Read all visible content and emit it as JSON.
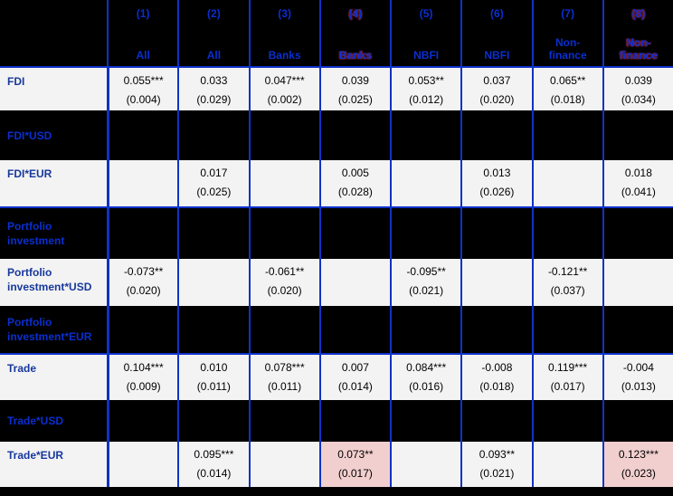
{
  "table": {
    "columns": [
      {
        "num": "(1)",
        "group": "All",
        "highlighted": false
      },
      {
        "num": "(2)",
        "group": "All",
        "highlighted": false
      },
      {
        "num": "(3)",
        "group": "Banks",
        "highlighted": false
      },
      {
        "num": "(4)",
        "group": "Banks",
        "highlighted": true
      },
      {
        "num": "(5)",
        "group": "NBFI",
        "highlighted": false
      },
      {
        "num": "(6)",
        "group": "NBFI",
        "highlighted": false
      },
      {
        "num": "(7)",
        "group": "Non-\nfinance",
        "highlighted": false
      },
      {
        "num": "(8)",
        "group": "Non-\nfinance",
        "highlighted": true
      }
    ],
    "rows": [
      {
        "label": "FDI",
        "variant": "light",
        "cells": [
          {
            "coef": "0.055***",
            "se": "(0.004)"
          },
          {
            "coef": "0.033",
            "se": "(0.029)"
          },
          {
            "coef": "0.047***",
            "se": "(0.002)"
          },
          {
            "coef": "0.039",
            "se": "(0.025)"
          },
          {
            "coef": "0.053**",
            "se": "(0.012)"
          },
          {
            "coef": "0.037",
            "se": "(0.020)"
          },
          {
            "coef": "0.065**",
            "se": "(0.018)"
          },
          {
            "coef": "0.039",
            "se": "(0.034)"
          }
        ]
      },
      {
        "label": "FDI*USD",
        "variant": "dark",
        "cells": [
          null,
          null,
          null,
          null,
          null,
          null,
          null,
          null
        ]
      },
      {
        "label": "FDI*EUR",
        "variant": "light",
        "cells": [
          null,
          {
            "coef": "0.017",
            "se": "(0.025)"
          },
          null,
          {
            "coef": "0.005",
            "se": "(0.028)"
          },
          null,
          {
            "coef": "0.013",
            "se": "(0.026)"
          },
          null,
          {
            "coef": "0.018",
            "se": "(0.041)"
          }
        ]
      },
      {
        "label": "Portfolio investment",
        "variant": "dark",
        "cells": [
          null,
          null,
          null,
          null,
          null,
          null,
          null,
          null
        ]
      },
      {
        "label": "Portfolio investment*USD",
        "variant": "light",
        "cells": [
          {
            "coef": "-0.073**",
            "se": "(0.020)"
          },
          null,
          {
            "coef": "-0.061**",
            "se": "(0.020)"
          },
          null,
          {
            "coef": "-0.095**",
            "se": "(0.021)"
          },
          null,
          {
            "coef": "-0.121**",
            "se": "(0.037)"
          },
          null
        ]
      },
      {
        "label": "Portfolio investment*EUR",
        "variant": "dark",
        "cells": [
          null,
          null,
          null,
          null,
          null,
          null,
          null,
          null
        ]
      },
      {
        "label": "Trade",
        "variant": "light",
        "cells": [
          {
            "coef": "0.104***",
            "se": "(0.009)"
          },
          {
            "coef": "0.010",
            "se": "(0.011)"
          },
          {
            "coef": "0.078***",
            "se": "(0.011)"
          },
          {
            "coef": "0.007",
            "se": "(0.014)"
          },
          {
            "coef": "0.084***",
            "se": "(0.016)"
          },
          {
            "coef": "-0.008",
            "se": "(0.018)"
          },
          {
            "coef": "0.119***",
            "se": "(0.017)"
          },
          {
            "coef": "-0.004",
            "se": "(0.013)"
          }
        ]
      },
      {
        "label": "Trade*USD",
        "variant": "dark",
        "cells": [
          null,
          null,
          null,
          null,
          null,
          null,
          null,
          null
        ]
      },
      {
        "label": "Trade*EUR",
        "variant": "light",
        "cells": [
          null,
          {
            "coef": "0.095***",
            "se": "(0.014)"
          },
          null,
          {
            "coef": "0.073**",
            "se": "(0.017)",
            "highlight": true
          },
          null,
          {
            "coef": "0.093**",
            "se": "(0.021)"
          },
          null,
          {
            "coef": "0.123***",
            "se": "(0.023)",
            "highlight": true
          }
        ]
      }
    ],
    "colors": {
      "header_text": "#0a2fd0",
      "grid_line": "#1132c4",
      "light_row_bg": "#f3f3f3",
      "light_label_text": "#17389c",
      "dark_row_bg": "#000000",
      "highlight_cell_bg": "#f2cfcf",
      "value_text": "#000000"
    }
  }
}
